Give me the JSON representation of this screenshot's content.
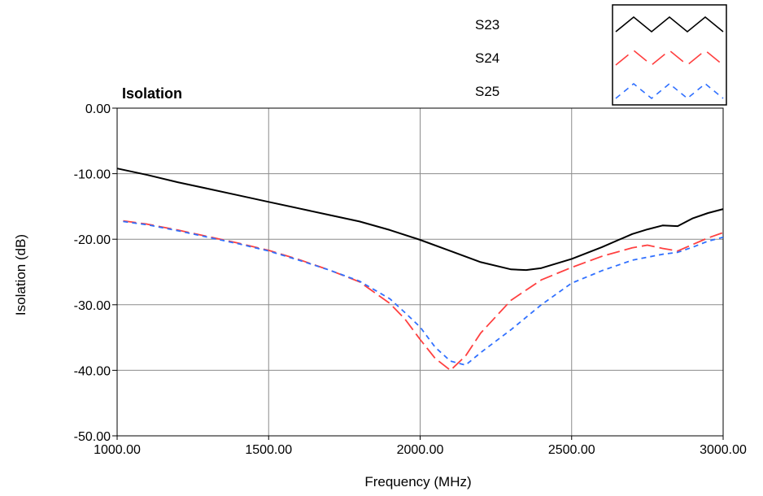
{
  "chart_data": {
    "type": "line",
    "title": "Isolation",
    "xlabel": "Frequency (MHz)",
    "ylabel": "Isolation (dB)",
    "xlim": [
      1000,
      3000
    ],
    "ylim": [
      -50,
      0
    ],
    "xticks": [
      1000,
      1500,
      2000,
      2500,
      3000
    ],
    "xtick_labels": [
      "1000.00",
      "1500.00",
      "2000.00",
      "2500.00",
      "3000.00"
    ],
    "yticks": [
      0,
      -10,
      -20,
      -30,
      -40,
      -50
    ],
    "ytick_labels": [
      "0.00",
      "-10.00",
      "-20.00",
      "-30.00",
      "-40.00",
      "-50.00"
    ],
    "grid": true,
    "legend_position": "top-right",
    "series": [
      {
        "name": "S23",
        "color": "#000000",
        "style": "solid",
        "x": [
          1000,
          1100,
          1200,
          1300,
          1400,
          1500,
          1600,
          1700,
          1800,
          1900,
          2000,
          2100,
          2200,
          2300,
          2350,
          2400,
          2500,
          2600,
          2700,
          2750,
          2800,
          2850,
          2900,
          2950,
          3000
        ],
        "y": [
          -9.2,
          -10.2,
          -11.3,
          -12.3,
          -13.3,
          -14.3,
          -15.3,
          -16.3,
          -17.3,
          -18.6,
          -20.1,
          -21.8,
          -23.5,
          -24.6,
          -24.7,
          -24.4,
          -23,
          -21.2,
          -19.2,
          -18.5,
          -17.9,
          -18,
          -16.8,
          -16,
          -15.4
        ]
      },
      {
        "name": "S24",
        "color": "#ff4040",
        "style": "dashed",
        "x": [
          1020,
          1100,
          1200,
          1300,
          1400,
          1500,
          1600,
          1700,
          1800,
          1900,
          1950,
          2000,
          2050,
          2100,
          2150,
          2200,
          2300,
          2400,
          2500,
          2600,
          2700,
          2750,
          2800,
          2850,
          2900,
          2950,
          3000
        ],
        "y": [
          -17.2,
          -17.7,
          -18.6,
          -19.6,
          -20.6,
          -21.7,
          -23.1,
          -24.7,
          -26.5,
          -29.8,
          -32.2,
          -35.3,
          -38.2,
          -40,
          -37.8,
          -34.3,
          -29.3,
          -26.2,
          -24.3,
          -22.6,
          -21.3,
          -20.9,
          -21.4,
          -21.8,
          -20.8,
          -19.8,
          -19
        ]
      },
      {
        "name": "S25",
        "color": "#3070ff",
        "style": "dotted",
        "x": [
          1020,
          1100,
          1200,
          1300,
          1400,
          1500,
          1600,
          1700,
          1800,
          1900,
          1950,
          2000,
          2050,
          2100,
          2150,
          2200,
          2300,
          2400,
          2500,
          2600,
          2700,
          2800,
          2850,
          2900,
          2950,
          3000
        ],
        "y": [
          -17.3,
          -17.8,
          -18.7,
          -19.7,
          -20.7,
          -21.8,
          -23.2,
          -24.7,
          -26.4,
          -29.1,
          -31.2,
          -33.4,
          -36.5,
          -38.6,
          -39.2,
          -37.3,
          -33.8,
          -30,
          -26.7,
          -24.8,
          -23.2,
          -22.3,
          -22,
          -21.2,
          -20.3,
          -19.7
        ]
      }
    ]
  }
}
